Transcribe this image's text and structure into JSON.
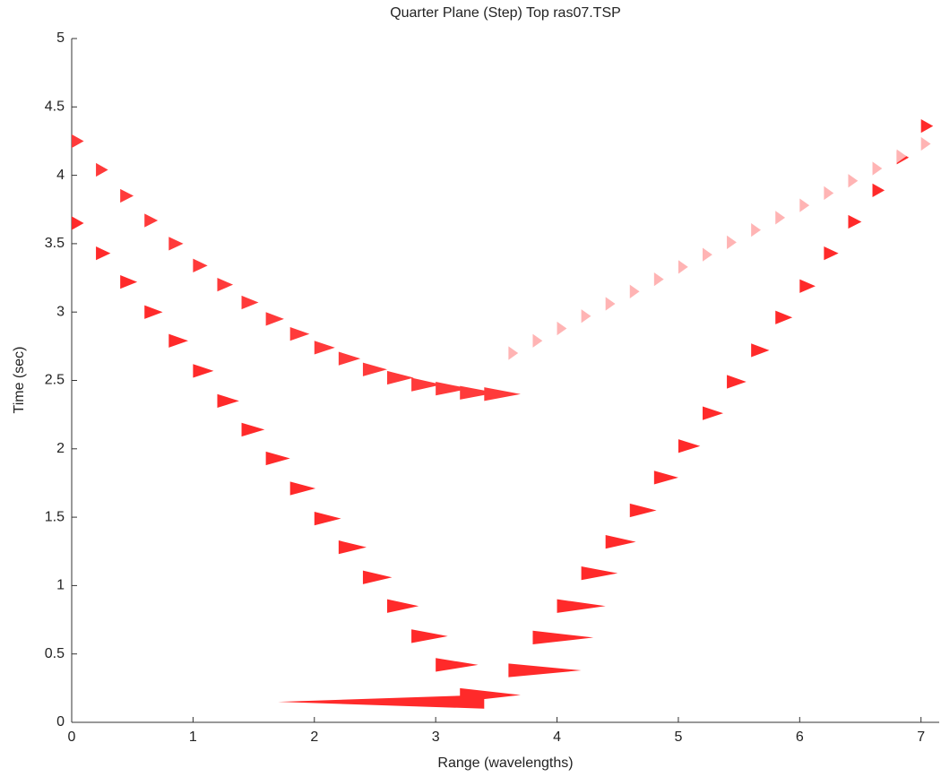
{
  "chart_data": {
    "type": "wiggle",
    "title": "Quarter Plane (Step) Top ras07.TSP",
    "x_label": "Range (wavelengths)",
    "y_label": "Time (sec)",
    "xlim": [
      0,
      7.15
    ],
    "ylim": [
      0,
      5
    ],
    "xticks": [
      0,
      1,
      2,
      3,
      4,
      5,
      6,
      7
    ],
    "yticks": [
      0,
      0.5,
      1,
      1.5,
      2,
      2.5,
      3,
      3.5,
      4,
      4.5,
      5
    ],
    "x": [
      0,
      0.2,
      0.4,
      0.6,
      0.8,
      1,
      1.2,
      1.4,
      1.6,
      1.8,
      2,
      2.2,
      2.4,
      2.6,
      2.8,
      3,
      3.2,
      3.4,
      3.6,
      3.8,
      4,
      4.2,
      4.4,
      4.6,
      4.8,
      5,
      5.2,
      5.4,
      5.6,
      5.8,
      6,
      6.2,
      6.4,
      6.6,
      6.8,
      7
    ],
    "series": [
      {
        "color": "#ff2a2a",
        "values": [
          3.65,
          3.43,
          3.22,
          3.0,
          2.79,
          2.57,
          2.35,
          2.14,
          1.93,
          1.71,
          1.49,
          1.28,
          1.06,
          0.85,
          0.63,
          0.42,
          0.2,
          null,
          null,
          null,
          null,
          null,
          null,
          null,
          null,
          null,
          null,
          null,
          null,
          null,
          null,
          null,
          null,
          null,
          null,
          null
        ],
        "amplitudes": [
          0.1,
          0.12,
          0.14,
          0.15,
          0.16,
          0.17,
          0.18,
          0.19,
          0.2,
          0.21,
          0.22,
          0.23,
          0.24,
          0.26,
          0.3,
          0.35,
          0.5,
          null,
          null,
          null,
          null,
          null,
          null,
          null,
          null,
          null,
          null,
          null,
          null,
          null,
          null,
          null,
          null,
          null,
          null,
          null
        ]
      },
      {
        "color": "#ff2a2a",
        "values": [
          null,
          null,
          null,
          null,
          null,
          null,
          null,
          null,
          null,
          null,
          null,
          null,
          null,
          null,
          null,
          null,
          null,
          0.15,
          0.38,
          0.62,
          0.85,
          1.09,
          1.32,
          1.55,
          1.79,
          2.02,
          2.26,
          2.49,
          2.72,
          2.96,
          3.19,
          3.43,
          3.66,
          3.89,
          4.13,
          4.36
        ],
        "amplitudes": [
          null,
          null,
          null,
          null,
          null,
          null,
          null,
          null,
          null,
          null,
          null,
          null,
          null,
          null,
          null,
          null,
          null,
          -1.7,
          0.6,
          0.5,
          0.4,
          0.3,
          0.25,
          0.22,
          0.2,
          0.18,
          0.17,
          0.16,
          0.15,
          0.14,
          0.13,
          0.12,
          0.11,
          0.1,
          0.1,
          0.1
        ]
      },
      {
        "color": "#ff3a3a",
        "values": [
          4.25,
          4.04,
          3.85,
          3.67,
          3.5,
          3.34,
          3.2,
          3.07,
          2.95,
          2.84,
          2.74,
          2.66,
          2.58,
          2.52,
          2.47,
          2.44,
          2.41,
          2.4,
          null,
          null,
          null,
          null,
          null,
          null,
          null,
          null,
          null,
          null,
          null,
          null,
          null,
          null,
          null,
          null,
          null,
          null
        ],
        "amplitudes": [
          0.1,
          0.1,
          0.11,
          0.11,
          0.12,
          0.12,
          0.13,
          0.14,
          0.15,
          0.16,
          0.17,
          0.18,
          0.2,
          0.22,
          0.25,
          0.28,
          0.3,
          0.3,
          null,
          null,
          null,
          null,
          null,
          null,
          null,
          null,
          null,
          null,
          null,
          null,
          null,
          null,
          null,
          null,
          null,
          null
        ]
      },
      {
        "color": "#ffb4b4",
        "values": [
          null,
          null,
          null,
          null,
          null,
          null,
          null,
          null,
          null,
          null,
          null,
          null,
          null,
          null,
          null,
          null,
          null,
          null,
          2.7,
          2.79,
          2.88,
          2.97,
          3.06,
          3.15,
          3.24,
          3.33,
          3.42,
          3.51,
          3.6,
          3.69,
          3.78,
          3.87,
          3.96,
          4.05,
          4.14,
          4.23
        ],
        "amplitudes": [
          null,
          null,
          null,
          null,
          null,
          null,
          null,
          null,
          null,
          null,
          null,
          null,
          null,
          null,
          null,
          null,
          null,
          null,
          0.08,
          0.08,
          0.08,
          0.08,
          0.08,
          0.08,
          0.08,
          0.08,
          0.08,
          0.08,
          0.08,
          0.08,
          0.08,
          0.08,
          0.08,
          0.08,
          0.08,
          0.08
        ]
      }
    ]
  }
}
